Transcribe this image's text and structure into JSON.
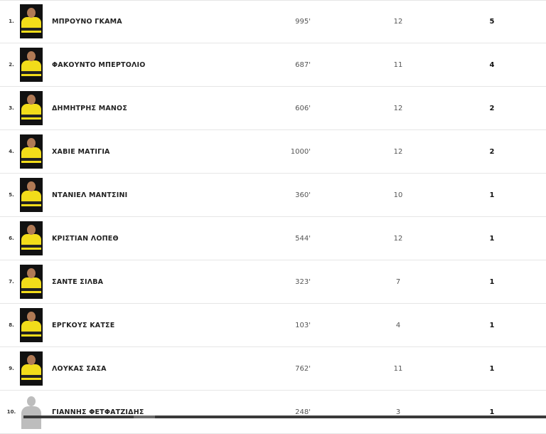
{
  "players": [
    {
      "rank": "1.",
      "name": "ΜΠΡΟΥΝΟ ΓΚΑΜΑ",
      "minutes": "995'",
      "apps": "12",
      "goals": "5",
      "photo": "player-photo"
    },
    {
      "rank": "2.",
      "name": "ΦΑΚΟΥΝΤΟ ΜΠΕΡΤΟΛΙΟ",
      "minutes": "687'",
      "apps": "11",
      "goals": "4",
      "photo": "player-photo"
    },
    {
      "rank": "3.",
      "name": "ΔΗΜΗΤΡΗΣ ΜΑΝΟΣ",
      "minutes": "606'",
      "apps": "12",
      "goals": "2",
      "photo": "player-photo"
    },
    {
      "rank": "4.",
      "name": "ΧΑΒΙΕ ΜΑΤΙΓΙΑ",
      "minutes": "1000'",
      "apps": "12",
      "goals": "2",
      "photo": "player-photo"
    },
    {
      "rank": "5.",
      "name": "ΝΤΑΝΙΕΛ ΜΑΝΤΣΙΝΙ",
      "minutes": "360'",
      "apps": "10",
      "goals": "1",
      "photo": "player-photo"
    },
    {
      "rank": "6.",
      "name": "ΚΡΙΣΤΙΑΝ ΛΟΠΕΘ",
      "minutes": "544'",
      "apps": "12",
      "goals": "1",
      "photo": "player-photo"
    },
    {
      "rank": "7.",
      "name": "ΣΑΝΤΕ ΣΙΛΒΑ",
      "minutes": "323'",
      "apps": "7",
      "goals": "1",
      "photo": "player-photo"
    },
    {
      "rank": "8.",
      "name": "ΕΡΓΚΟΥΣ ΚΑΤΣΕ",
      "minutes": "103'",
      "apps": "4",
      "goals": "1",
      "photo": "player-photo"
    },
    {
      "rank": "9.",
      "name": "ΛΟΥΚΑΣ ΣΑΣΑ",
      "minutes": "762'",
      "apps": "11",
      "goals": "1",
      "photo": "player-photo"
    },
    {
      "rank": "10.",
      "name": "ΓΙΑΝΝΗΣ ΦΕΤΦΑΤΖΙΔΗΣ",
      "minutes": "248'",
      "apps": "3",
      "goals": "1",
      "photo": "silhouette-placeholder"
    }
  ],
  "colors": {
    "kit": "#f2dc1a",
    "divider": "#e6e6e6"
  }
}
